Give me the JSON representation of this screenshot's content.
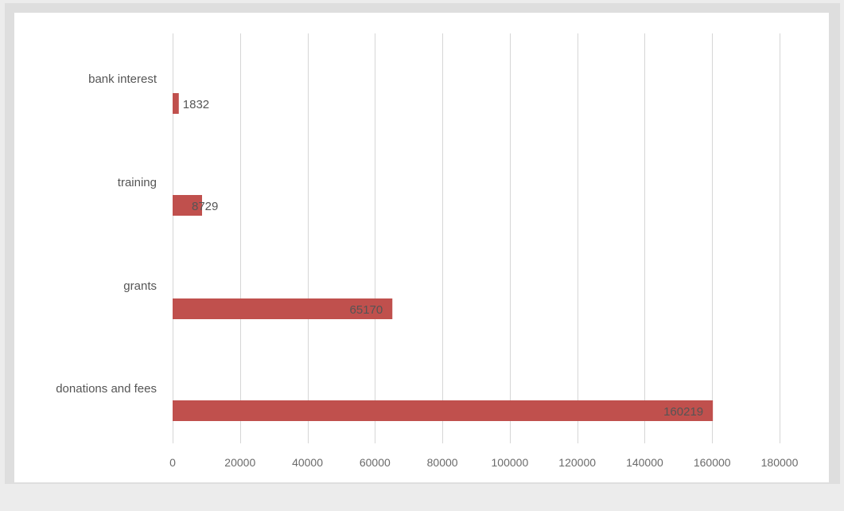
{
  "chart_data": {
    "type": "bar",
    "orientation": "horizontal",
    "categories": [
      "bank interest",
      "training",
      "grants",
      "donations and fees"
    ],
    "values": [
      1832,
      8729,
      65170,
      160219
    ],
    "data_labels": [
      "1832",
      "8729",
      "65170",
      "160219"
    ],
    "xlim": [
      0,
      180000
    ],
    "ticks": [
      0,
      20000,
      40000,
      60000,
      80000,
      100000,
      120000,
      140000,
      160000,
      180000
    ],
    "tick_labels": [
      "0",
      "20000",
      "40000",
      "60000",
      "80000",
      "100000",
      "120000",
      "140000",
      "160000",
      "180000"
    ],
    "bar_color": "#c0504d",
    "grid": "vertical",
    "legend": "none"
  }
}
